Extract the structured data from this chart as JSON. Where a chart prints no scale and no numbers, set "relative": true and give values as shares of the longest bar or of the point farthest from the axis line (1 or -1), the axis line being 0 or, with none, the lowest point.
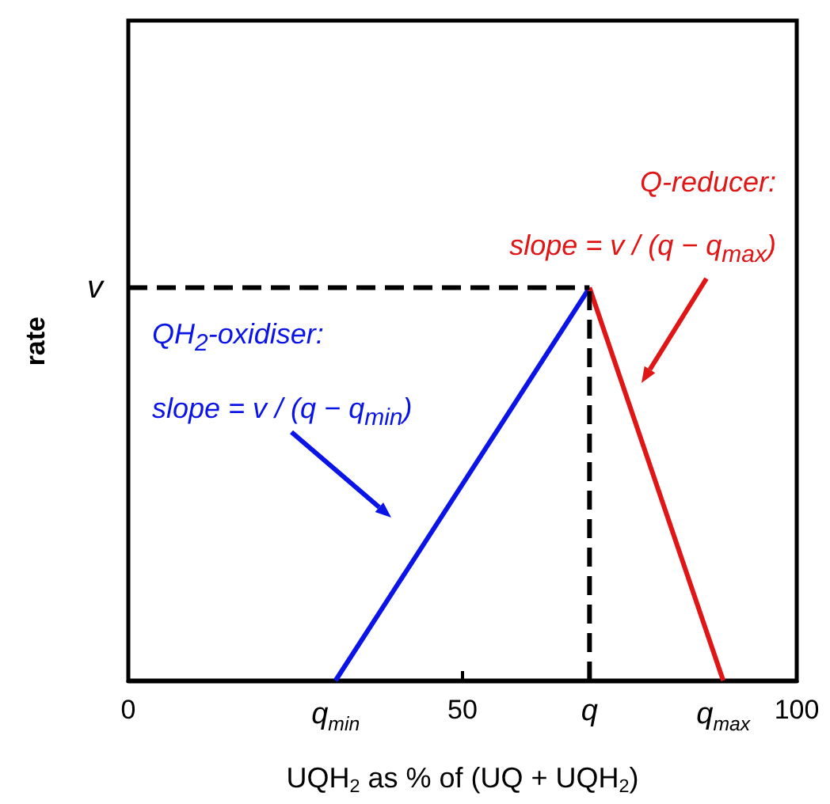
{
  "chart_data": {
    "type": "line",
    "relative": true,
    "marker": "none",
    "xlabel": "UQH$_{2}$ as % of (UQ + UQH$_{2}$)",
    "ylabel": "rate",
    "xlim": [
      0,
      100
    ],
    "xticks": [
      0,
      {
        "value": 31,
        "label": "q$_{min}$"
      },
      50,
      {
        "value": 69,
        "label": "q"
      },
      {
        "value": 89,
        "label": "q$_{max}$"
      },
      100
    ],
    "series": [
      {
        "color": "#0a14e6",
        "x": [
          31,
          69
        ],
        "values": [
          0,
          1
        ]
      },
      {
        "color": "#e01515",
        "x": [
          69,
          89
        ],
        "values": [
          1,
          0
        ]
      },
      {
        "color": "#000000",
        "x": [
          0,
          69
        ],
        "values": [
          1,
          1
        ],
        "line_style": "dashed"
      },
      {
        "color": "#000000",
        "x": [
          69,
          69
        ],
        "values": [
          0,
          1
        ],
        "line_style": "dashed"
      }
    ],
    "annotations": [
      "QH$_{2}$-oxidiser:\nslope = v / (q − q$_{min}$)",
      "Q-reducer:\nslope = v / (q − q$_{max}$)",
      {
        "text": "v",
        "x": 0,
        "y": 1
      }
    ]
  }
}
